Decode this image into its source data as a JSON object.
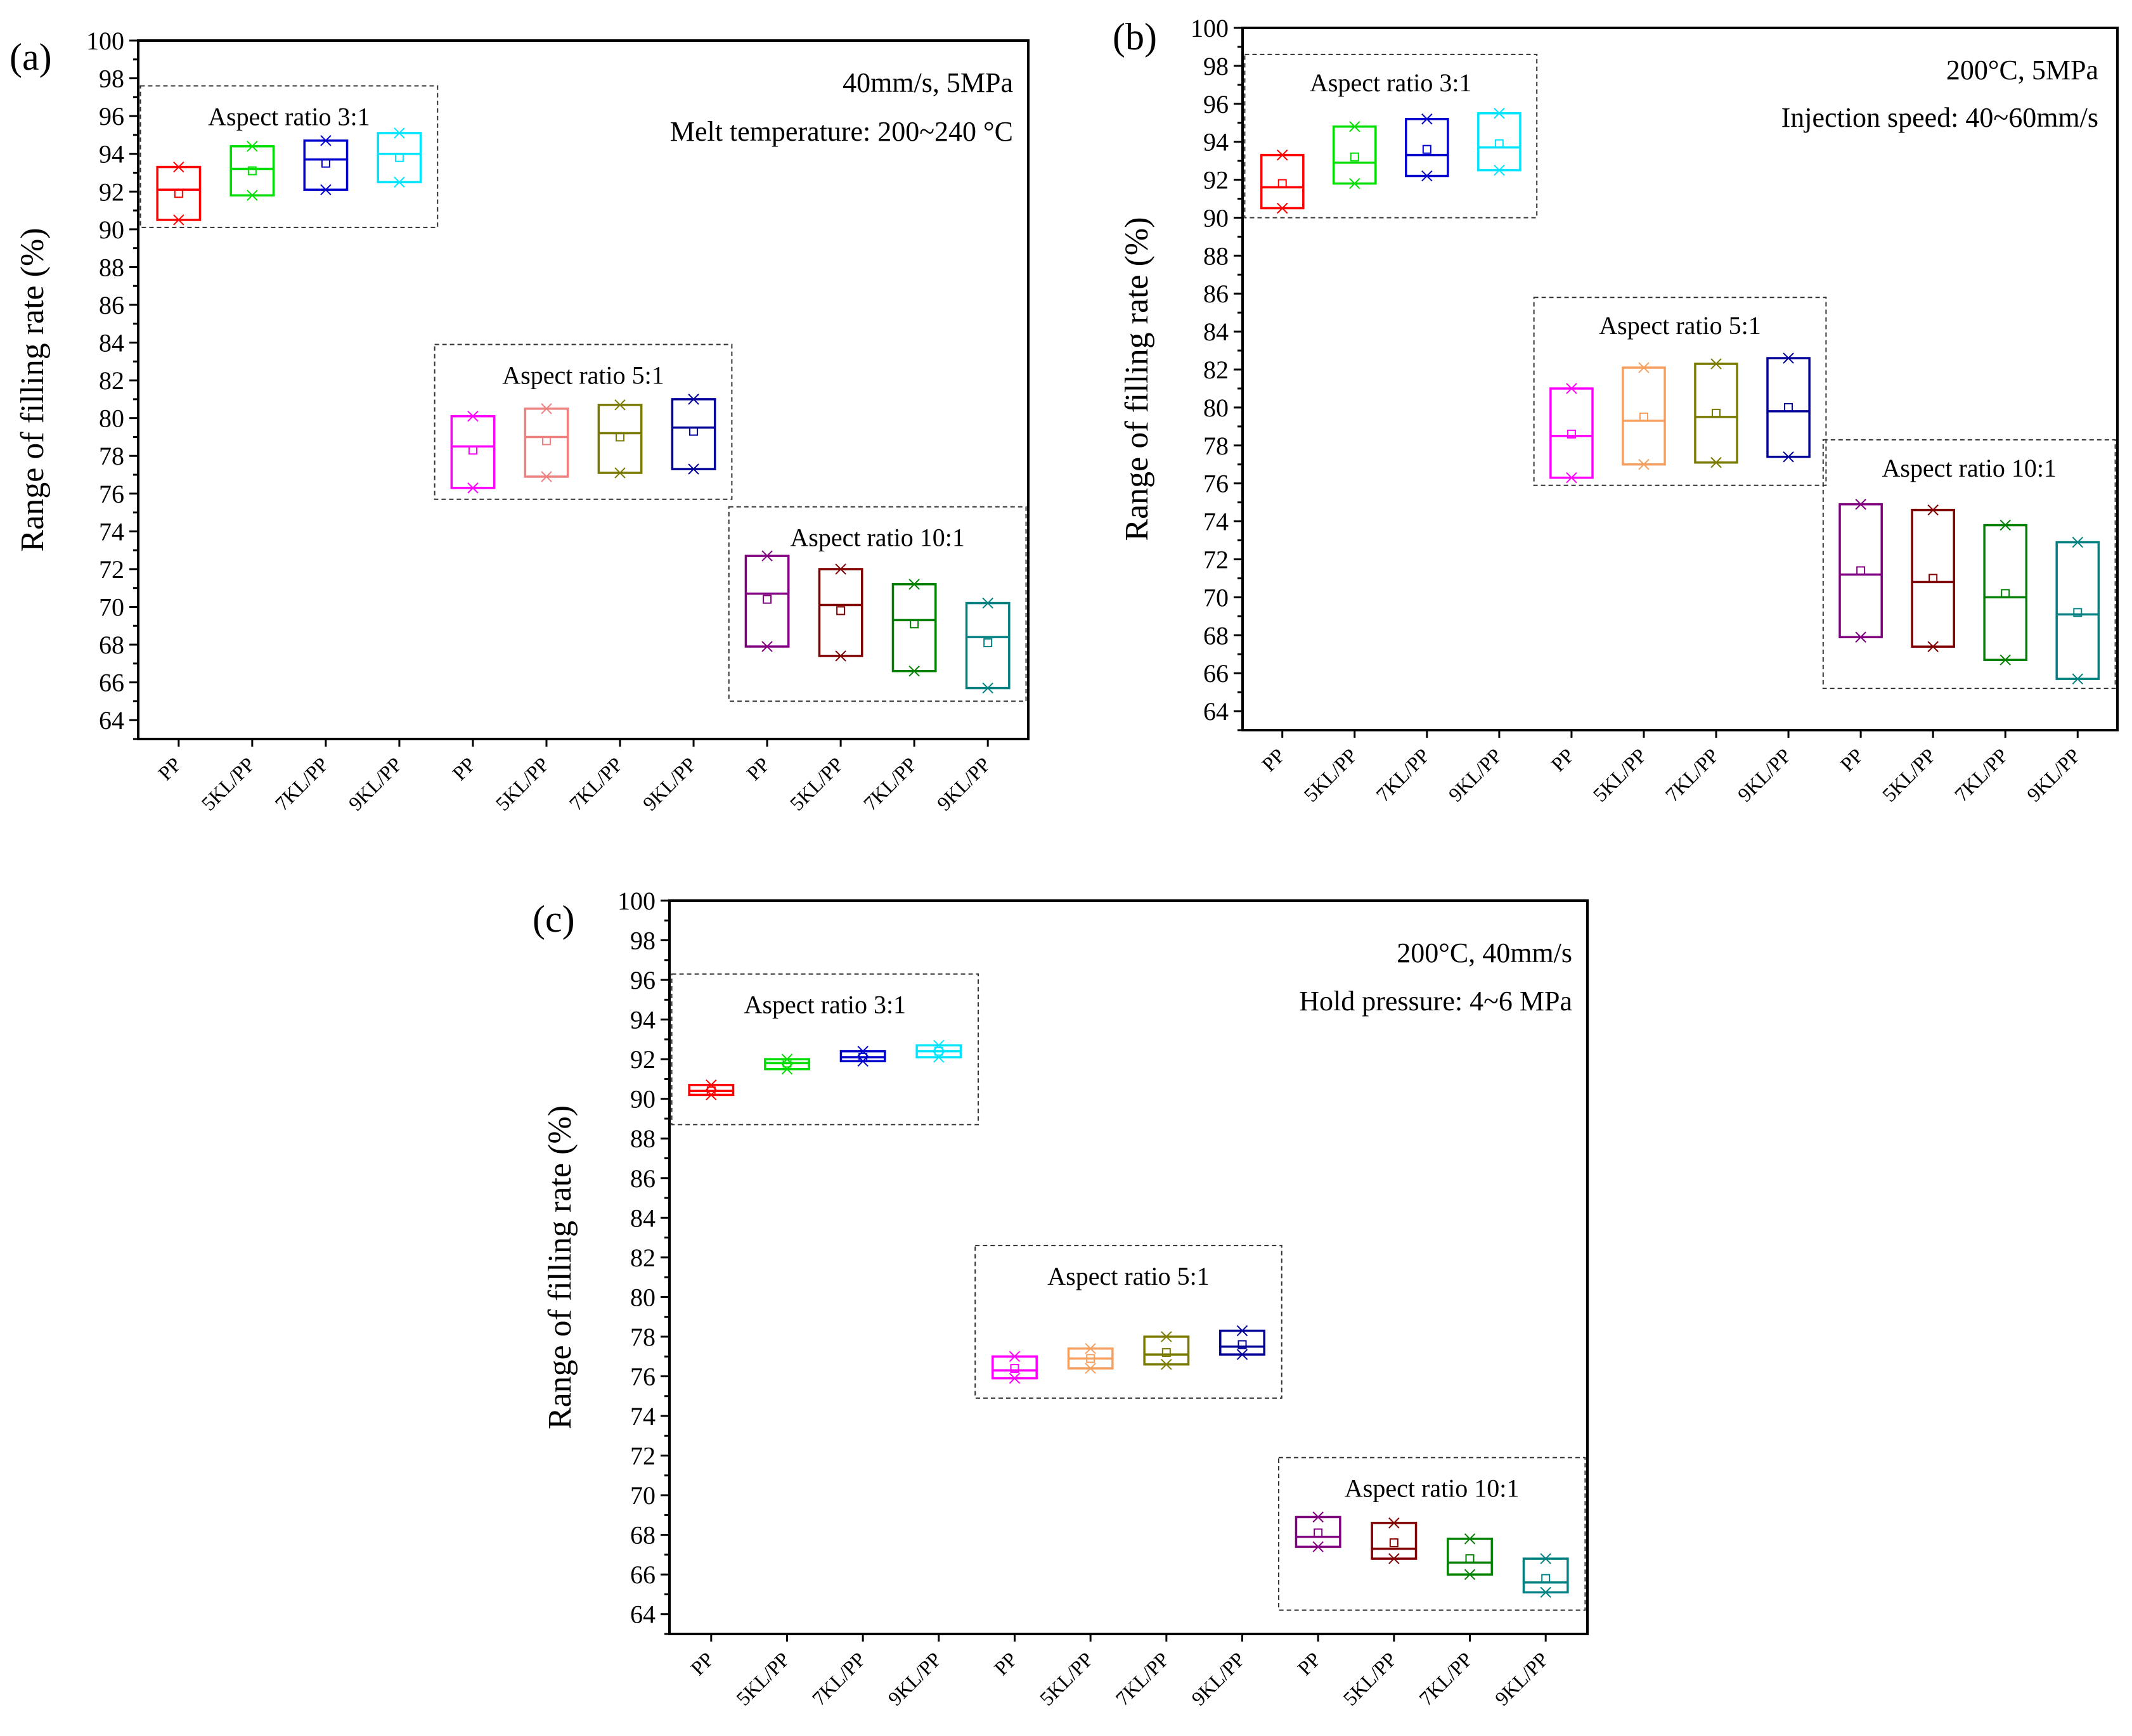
{
  "colors": {
    "PP_3": "#ff0000",
    "5KL_3": "#00dd00",
    "7KL_3": "#0000cc",
    "9KL_3": "#00e5ff",
    "PP_5": "#ff00ff",
    "5KL_5": "#f5a060",
    "7KL_5": "#7a7a00",
    "9KL_5": "#000099",
    "PP_10": "#800080",
    "5KL_10": "#800000",
    "7KL_10": "#008000",
    "9KL_10": "#008080",
    "5KL_5_a": "#f08080"
  },
  "chart_data": [
    {
      "type": "box",
      "panel": "(a)",
      "ylabel": "Range of filling rate (%)",
      "ylim": [
        63,
        100
      ],
      "yticks": [
        "64",
        "66",
        "68",
        "70",
        "72",
        "74",
        "76",
        "78",
        "80",
        "82",
        "84",
        "86",
        "88",
        "90",
        "92",
        "94",
        "96",
        "98",
        "100"
      ],
      "conditions": [
        "40mm/s, 5MPa",
        "Melt temperature: 200~240 °C"
      ],
      "categories": [
        "PP",
        "5KL/PP",
        "7KL/PP",
        "9KL/PP",
        "PP",
        "5KL/PP",
        "7KL/PP",
        "9KL/PP",
        "PP",
        "5KL/PP",
        "7KL/PP",
        "9KL/PP"
      ],
      "groups": [
        {
          "label": "Aspect ratio 3:1",
          "first": 0,
          "last": 3,
          "ybox": [
            90.1,
            97.6
          ]
        },
        {
          "label": "Aspect ratio 5:1",
          "first": 4,
          "last": 7,
          "ybox": [
            75.7,
            83.9
          ]
        },
        {
          "label": "Aspect ratio 10:1",
          "first": 8,
          "last": 11,
          "ybox": [
            65.0,
            75.3
          ]
        }
      ],
      "boxes": [
        {
          "name": "PP",
          "group": "3:1",
          "q1": 90.5,
          "median": 92.1,
          "q3": 93.3,
          "mean": 91.9,
          "min": 90.5,
          "max": 93.3,
          "color": "#ff0000"
        },
        {
          "name": "5KL/PP",
          "group": "3:1",
          "q1": 91.8,
          "median": 93.2,
          "q3": 94.4,
          "mean": 93.1,
          "min": 91.8,
          "max": 94.4,
          "color": "#00dd00"
        },
        {
          "name": "7KL/PP",
          "group": "3:1",
          "q1": 92.1,
          "median": 93.7,
          "q3": 94.7,
          "mean": 93.5,
          "min": 92.1,
          "max": 94.7,
          "color": "#0000cc"
        },
        {
          "name": "9KL/PP",
          "group": "3:1",
          "q1": 92.5,
          "median": 94.0,
          "q3": 95.1,
          "mean": 93.8,
          "min": 92.5,
          "max": 95.1,
          "color": "#00e5ff"
        },
        {
          "name": "PP",
          "group": "5:1",
          "q1": 76.3,
          "median": 78.5,
          "q3": 80.1,
          "mean": 78.3,
          "min": 76.3,
          "max": 80.1,
          "color": "#ff00ff"
        },
        {
          "name": "5KL/PP",
          "group": "5:1",
          "q1": 76.9,
          "median": 79.0,
          "q3": 80.5,
          "mean": 78.8,
          "min": 76.9,
          "max": 80.5,
          "color": "#f08080"
        },
        {
          "name": "7KL/PP",
          "group": "5:1",
          "q1": 77.1,
          "median": 79.2,
          "q3": 80.7,
          "mean": 79.0,
          "min": 77.1,
          "max": 80.7,
          "color": "#7a7a00"
        },
        {
          "name": "9KL/PP",
          "group": "5:1",
          "q1": 77.3,
          "median": 79.5,
          "q3": 81.0,
          "mean": 79.3,
          "min": 77.3,
          "max": 81.0,
          "color": "#000099"
        },
        {
          "name": "PP",
          "group": "10:1",
          "q1": 67.9,
          "median": 70.7,
          "q3": 72.7,
          "mean": 70.4,
          "min": 67.9,
          "max": 72.7,
          "color": "#800080"
        },
        {
          "name": "5KL/PP",
          "group": "10:1",
          "q1": 67.4,
          "median": 70.1,
          "q3": 72.0,
          "mean": 69.8,
          "min": 67.4,
          "max": 72.0,
          "color": "#800000"
        },
        {
          "name": "7KL/PP",
          "group": "10:1",
          "q1": 66.6,
          "median": 69.3,
          "q3": 71.2,
          "mean": 69.1,
          "min": 66.6,
          "max": 71.2,
          "color": "#008000"
        },
        {
          "name": "9KL/PP",
          "group": "10:1",
          "q1": 65.7,
          "median": 68.4,
          "q3": 70.2,
          "mean": 68.1,
          "min": 65.7,
          "max": 70.2,
          "color": "#008080"
        }
      ]
    },
    {
      "type": "box",
      "panel": "(b)",
      "ylabel": "Range of filling rate (%)",
      "ylim": [
        63,
        100
      ],
      "yticks": [
        "64",
        "66",
        "68",
        "70",
        "72",
        "74",
        "76",
        "78",
        "80",
        "82",
        "84",
        "86",
        "88",
        "90",
        "92",
        "94",
        "96",
        "98",
        "100"
      ],
      "conditions": [
        "200°C, 5MPa",
        "Injection speed: 40~60mm/s"
      ],
      "categories": [
        "PP",
        "5KL/PP",
        "7KL/PP",
        "9KL/PP",
        "PP",
        "5KL/PP",
        "7KL/PP",
        "9KL/PP",
        "PP",
        "5KL/PP",
        "7KL/PP",
        "9KL/PP"
      ],
      "groups": [
        {
          "label": "Aspect ratio 3:1",
          "first": 0,
          "last": 3,
          "ybox": [
            90.0,
            98.6
          ]
        },
        {
          "label": "Aspect ratio 5:1",
          "first": 4,
          "last": 7,
          "ybox": [
            75.9,
            85.8
          ]
        },
        {
          "label": "Aspect ratio 10:1",
          "first": 8,
          "last": 11,
          "ybox": [
            65.2,
            78.3
          ]
        }
      ],
      "boxes": [
        {
          "name": "PP",
          "group": "3:1",
          "q1": 90.5,
          "median": 91.6,
          "q3": 93.3,
          "mean": 91.8,
          "min": 90.5,
          "max": 93.3,
          "color": "#ff0000"
        },
        {
          "name": "5KL/PP",
          "group": "3:1",
          "q1": 91.8,
          "median": 92.9,
          "q3": 94.8,
          "mean": 93.2,
          "min": 91.8,
          "max": 94.8,
          "color": "#00dd00"
        },
        {
          "name": "7KL/PP",
          "group": "3:1",
          "q1": 92.2,
          "median": 93.3,
          "q3": 95.2,
          "mean": 93.6,
          "min": 92.2,
          "max": 95.2,
          "color": "#0000cc"
        },
        {
          "name": "9KL/PP",
          "group": "3:1",
          "q1": 92.5,
          "median": 93.7,
          "q3": 95.5,
          "mean": 93.9,
          "min": 92.5,
          "max": 95.5,
          "color": "#00e5ff"
        },
        {
          "name": "PP",
          "group": "5:1",
          "q1": 76.3,
          "median": 78.5,
          "q3": 81.0,
          "mean": 78.6,
          "min": 76.3,
          "max": 81.0,
          "color": "#ff00ff"
        },
        {
          "name": "5KL/PP",
          "group": "5:1",
          "q1": 77.0,
          "median": 79.3,
          "q3": 82.1,
          "mean": 79.5,
          "min": 77.0,
          "max": 82.1,
          "color": "#f5a060"
        },
        {
          "name": "7KL/PP",
          "group": "5:1",
          "q1": 77.1,
          "median": 79.5,
          "q3": 82.3,
          "mean": 79.7,
          "min": 77.1,
          "max": 82.3,
          "color": "#7a7a00"
        },
        {
          "name": "9KL/PP",
          "group": "5:1",
          "q1": 77.4,
          "median": 79.8,
          "q3": 82.6,
          "mean": 80.0,
          "min": 77.4,
          "max": 82.6,
          "color": "#000099"
        },
        {
          "name": "PP",
          "group": "10:1",
          "q1": 67.9,
          "median": 71.2,
          "q3": 74.9,
          "mean": 71.4,
          "min": 67.9,
          "max": 74.9,
          "color": "#800080"
        },
        {
          "name": "5KL/PP",
          "group": "10:1",
          "q1": 67.4,
          "median": 70.8,
          "q3": 74.6,
          "mean": 71.0,
          "min": 67.4,
          "max": 74.6,
          "color": "#800000"
        },
        {
          "name": "7KL/PP",
          "group": "10:1",
          "q1": 66.7,
          "median": 70.0,
          "q3": 73.8,
          "mean": 70.2,
          "min": 66.7,
          "max": 73.8,
          "color": "#008000"
        },
        {
          "name": "9KL/PP",
          "group": "10:1",
          "q1": 65.7,
          "median": 69.1,
          "q3": 72.9,
          "mean": 69.2,
          "min": 65.7,
          "max": 72.9,
          "color": "#008080"
        }
      ]
    },
    {
      "type": "box",
      "panel": "(c)",
      "ylabel": "Range of filling rate (%)",
      "ylim": [
        63,
        100
      ],
      "yticks": [
        "64",
        "66",
        "68",
        "70",
        "72",
        "74",
        "76",
        "78",
        "80",
        "82",
        "84",
        "86",
        "88",
        "90",
        "92",
        "94",
        "96",
        "98",
        "100"
      ],
      "conditions": [
        "200°C, 40mm/s",
        "Hold pressure: 4~6 MPa"
      ],
      "categories": [
        "PP",
        "5KL/PP",
        "7KL/PP",
        "9KL/PP",
        "PP",
        "5KL/PP",
        "7KL/PP",
        "9KL/PP",
        "PP",
        "5KL/PP",
        "7KL/PP",
        "9KL/PP"
      ],
      "groups": [
        {
          "label": "Aspect ratio 3:1",
          "first": 0,
          "last": 3,
          "ybox": [
            88.7,
            96.3
          ]
        },
        {
          "label": "Aspect ratio 5:1",
          "first": 4,
          "last": 7,
          "ybox": [
            74.9,
            82.6
          ]
        },
        {
          "label": "Aspect ratio 10:1",
          "first": 8,
          "last": 11,
          "ybox": [
            64.2,
            71.9
          ]
        }
      ],
      "boxes": [
        {
          "name": "PP",
          "group": "3:1",
          "q1": 90.2,
          "median": 90.4,
          "q3": 90.7,
          "mean": 90.4,
          "min": 90.2,
          "max": 90.7,
          "color": "#ff0000"
        },
        {
          "name": "5KL/PP",
          "group": "3:1",
          "q1": 91.5,
          "median": 91.8,
          "q3": 92.0,
          "mean": 91.8,
          "min": 91.5,
          "max": 92.0,
          "color": "#00dd00"
        },
        {
          "name": "7KL/PP",
          "group": "3:1",
          "q1": 91.9,
          "median": 92.1,
          "q3": 92.4,
          "mean": 92.1,
          "min": 91.9,
          "max": 92.4,
          "color": "#0000cc"
        },
        {
          "name": "9KL/PP",
          "group": "3:1",
          "q1": 92.1,
          "median": 92.4,
          "q3": 92.7,
          "mean": 92.4,
          "min": 92.1,
          "max": 92.7,
          "color": "#00e5ff"
        },
        {
          "name": "PP",
          "group": "5:1",
          "q1": 75.9,
          "median": 76.3,
          "q3": 77.0,
          "mean": 76.4,
          "min": 75.9,
          "max": 77.0,
          "color": "#ff00ff"
        },
        {
          "name": "5KL/PP",
          "group": "5:1",
          "q1": 76.4,
          "median": 76.9,
          "q3": 77.4,
          "mean": 76.9,
          "min": 76.4,
          "max": 77.4,
          "color": "#f5a060"
        },
        {
          "name": "7KL/PP",
          "group": "5:1",
          "q1": 76.6,
          "median": 77.1,
          "q3": 78.0,
          "mean": 77.2,
          "min": 76.6,
          "max": 78.0,
          "color": "#7a7a00"
        },
        {
          "name": "9KL/PP",
          "group": "5:1",
          "q1": 77.1,
          "median": 77.5,
          "q3": 78.3,
          "mean": 77.6,
          "min": 77.1,
          "max": 78.3,
          "color": "#000099"
        },
        {
          "name": "PP",
          "group": "10:1",
          "q1": 67.4,
          "median": 67.9,
          "q3": 68.9,
          "mean": 68.1,
          "min": 67.4,
          "max": 68.9,
          "color": "#800080"
        },
        {
          "name": "5KL/PP",
          "group": "10:1",
          "q1": 66.8,
          "median": 67.3,
          "q3": 68.6,
          "mean": 67.6,
          "min": 66.8,
          "max": 68.6,
          "color": "#800000"
        },
        {
          "name": "7KL/PP",
          "group": "10:1",
          "q1": 66.0,
          "median": 66.6,
          "q3": 67.8,
          "mean": 66.8,
          "min": 66.0,
          "max": 67.8,
          "color": "#008000"
        },
        {
          "name": "9KL/PP",
          "group": "10:1",
          "q1": 65.1,
          "median": 65.6,
          "q3": 66.8,
          "mean": 65.8,
          "min": 65.1,
          "max": 66.8,
          "color": "#008080"
        }
      ]
    }
  ]
}
